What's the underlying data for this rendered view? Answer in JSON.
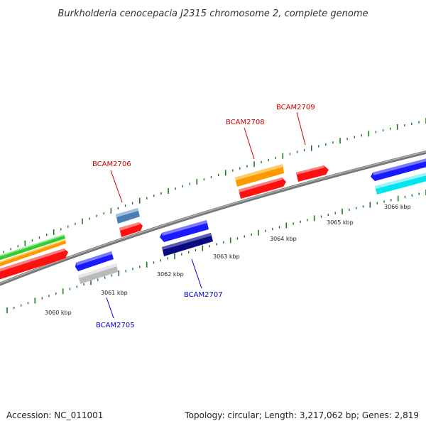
{
  "title": "Burkholderia cenocepacia J2315 chromosome 2, complete genome",
  "footer": {
    "accession": "Accession: NC_011001",
    "summary": "Topology: circular; Length: 3,217,062 bp; Genes: 2,819"
  },
  "colors": {
    "backbone": "#888888",
    "tick": "#1a7a1a",
    "forward_label": "#cc0000",
    "reverse_label": "#0000cc",
    "red": "#ff1010",
    "orange": "#ff9900",
    "green": "#33cc33",
    "blue": "#1a1aff",
    "navy": "#0a0a80",
    "steelblue": "#4a7fb5",
    "silver": "#bbbbbb",
    "cyan": "#00e5ee"
  },
  "scale": {
    "ticks": [
      {
        "label": "3060 kbp"
      },
      {
        "label": "3061 kbp"
      },
      {
        "label": "3062 kbp"
      },
      {
        "label": "3063 kbp"
      },
      {
        "label": "3064 kbp"
      },
      {
        "label": "3065 kbp"
      },
      {
        "label": "3066 kbp"
      }
    ]
  },
  "gene_labels": [
    {
      "label": "BCAM2705",
      "strand": "reverse"
    },
    {
      "label": "BCAM2706",
      "strand": "forward"
    },
    {
      "label": "BCAM2707",
      "strand": "reverse"
    },
    {
      "label": "BCAM2708",
      "strand": "forward"
    },
    {
      "label": "BCAM2709",
      "strand": "forward"
    }
  ]
}
